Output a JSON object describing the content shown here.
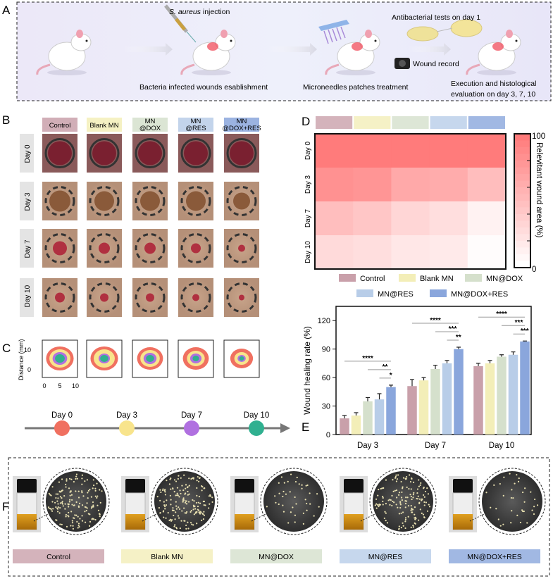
{
  "panel_labels": {
    "a": "A",
    "b": "B",
    "c": "C",
    "d": "D",
    "e": "E",
    "f": "F"
  },
  "groups": [
    {
      "name": "Control",
      "color": "#c9a0aa"
    },
    {
      "name": "Blank MN",
      "color": "#f3eeb8"
    },
    {
      "name": "MN@DOX",
      "color": "#d5e0cc"
    },
    {
      "name": "MN@RES",
      "color": "#b8cde8"
    },
    {
      "name": "MN@DOX+RES",
      "color": "#8aa6dc"
    }
  ],
  "panel_a": {
    "injection_species": "S. aureus",
    "injection_text": " injection",
    "step1": "Bacteria infected wounds esablishment",
    "step2": "Microneedles patches treatment",
    "antibacterial": "Antibacterial tests on day 1",
    "wound_record": "Wound record",
    "execution_line1": "Execution and histological",
    "execution_line2": "evaluation on day 3, 7, 10"
  },
  "panel_b": {
    "headers": [
      {
        "line1": "Control",
        "line2": ""
      },
      {
        "line1": "Blank MN",
        "line2": ""
      },
      {
        "line1": "MN",
        "line2": "@DOX"
      },
      {
        "line1": "MN",
        "line2": "@RES"
      },
      {
        "line1": "MN",
        "line2": "@DOX+RES"
      }
    ],
    "days": [
      "Day 0",
      "Day 3",
      "Day 7",
      "Day 10"
    ]
  },
  "panel_c": {
    "ylabel": "Distance (mm)",
    "yticks": [
      "0",
      "10"
    ],
    "xticks": [
      "0",
      "5",
      "10"
    ],
    "timeline": [
      {
        "label": "Day 0",
        "color": "#f07060"
      },
      {
        "label": "Day 3",
        "color": "#f8e48c"
      },
      {
        "label": "Day 7",
        "color": "#b070e0"
      },
      {
        "label": "Day 10",
        "color": "#30b090"
      }
    ]
  },
  "panel_f": {
    "labels": [
      "Control",
      "Blank MN",
      "MN@DOX",
      "MN@RES",
      "MN@DOX+RES"
    ]
  },
  "chart_data": [
    {
      "type": "heatmap",
      "panel": "D",
      "rows": [
        "Day 0",
        "Day 3",
        "Day 7",
        "Day 10"
      ],
      "columns": [
        "Control",
        "Blank MN",
        "MN@DOX",
        "MN@RES",
        "MN@DOX+RES"
      ],
      "values": [
        [
          100,
          100,
          100,
          100,
          100
        ],
        [
          83,
          80,
          65,
          63,
          50
        ],
        [
          49,
          43,
          31,
          25,
          10
        ],
        [
          28,
          25,
          18,
          16,
          2
        ]
      ],
      "colorbar_label": "Relevitant wound area (%)",
      "colorbar_range": [
        0,
        100
      ],
      "colorbar_ticks": [
        "0",
        "100"
      ],
      "color_low": "#ffffff",
      "color_high": "#ff7b7b"
    },
    {
      "type": "bar",
      "panel": "E",
      "categories": [
        "Day 3",
        "Day 7",
        "Day 10"
      ],
      "series": [
        {
          "name": "Control",
          "values": [
            17,
            51,
            72
          ],
          "errors": [
            3,
            7,
            3
          ]
        },
        {
          "name": "Blank MN",
          "values": [
            20,
            57,
            75
          ],
          "errors": [
            3,
            3,
            3
          ]
        },
        {
          "name": "MN@DOX",
          "values": [
            35,
            69,
            82
          ],
          "errors": [
            4,
            4,
            2
          ]
        },
        {
          "name": "MN@RES",
          "values": [
            37,
            75,
            84
          ],
          "errors": [
            6,
            3,
            3
          ]
        },
        {
          "name": "MN@DOX+RES",
          "values": [
            50,
            90,
            98
          ],
          "errors": [
            2,
            2,
            0.5
          ]
        }
      ],
      "ylabel": "Wound healing rate (%)",
      "ylim": [
        0,
        135
      ],
      "yticks": [
        0,
        30,
        60,
        90,
        120
      ],
      "legend": "top",
      "significance": [
        {
          "category": "Day 3",
          "from": "Control",
          "to": "MN@DOX+RES",
          "label": "****"
        },
        {
          "category": "Day 3",
          "from": "MN@DOX",
          "to": "MN@DOX+RES",
          "label": "**"
        },
        {
          "category": "Day 3",
          "from": "MN@RES",
          "to": "MN@DOX+RES",
          "label": "*"
        },
        {
          "category": "Day 7",
          "from": "Control",
          "to": "MN@DOX+RES",
          "label": "****"
        },
        {
          "category": "Day 7",
          "from": "MN@DOX",
          "to": "MN@DOX+RES",
          "label": "***"
        },
        {
          "category": "Day 7",
          "from": "MN@RES",
          "to": "MN@DOX+RES",
          "label": "**"
        },
        {
          "category": "Day 10",
          "from": "Control",
          "to": "MN@DOX+RES",
          "label": "****"
        },
        {
          "category": "Day 10",
          "from": "MN@DOX",
          "to": "MN@DOX+RES",
          "label": "***"
        },
        {
          "category": "Day 10",
          "from": "MN@RES",
          "to": "MN@DOX+RES",
          "label": "***"
        }
      ]
    }
  ]
}
